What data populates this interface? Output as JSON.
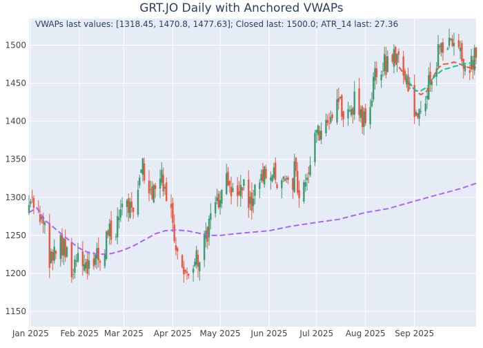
{
  "chart_data": {
    "type": "candlestick",
    "title": "GRT.JO Daily with Anchored VWAPs",
    "annotation": "VWAPs last values: [1318.45, 1470.8, 1477.63]; Closed last: 1500.0; ATR_14 last: 27.36",
    "xlabel": "",
    "ylabel": "",
    "x_range": [
      "2024-12-31",
      "2025-10-10"
    ],
    "ylim": [
      1130,
      1535
    ],
    "y_ticks": [
      1150,
      1200,
      1250,
      1300,
      1350,
      1400,
      1450,
      1500
    ],
    "x_ticks": [
      {
        "date": "2025-01-01",
        "label": "Jan 2025"
      },
      {
        "date": "2025-02-01",
        "label": "Feb 2025"
      },
      {
        "date": "2025-03-01",
        "label": "Mar 2025"
      },
      {
        "date": "2025-04-01",
        "label": "Apr 2025"
      },
      {
        "date": "2025-05-01",
        "label": "May 2025"
      },
      {
        "date": "2025-06-01",
        "label": "Jun 2025"
      },
      {
        "date": "2025-07-01",
        "label": "Jul 2025"
      },
      {
        "date": "2025-08-01",
        "label": "Aug 2025"
      },
      {
        "date": "2025-09-01",
        "label": "Sep 2025"
      }
    ],
    "grid": true,
    "legend": "none",
    "colors": {
      "plot_bg": "#e5ecf6",
      "grid": "#ffffff",
      "up": "#3d9970",
      "down": "#ef553b",
      "vwap_1": "#ab63fa",
      "vwap_2": "#ef553b",
      "vwap_3": "#00cc96",
      "text": "#444444",
      "title": "#2a3f5f"
    },
    "close_path": [
      [
        "2024-12-31",
        1280
      ],
      [
        "2025-01-03",
        1292
      ],
      [
        "2025-01-06",
        1275
      ],
      [
        "2025-01-09",
        1265
      ],
      [
        "2025-01-13",
        1215
      ],
      [
        "2025-01-16",
        1240
      ],
      [
        "2025-01-20",
        1245
      ],
      [
        "2025-01-23",
        1228
      ],
      [
        "2025-01-27",
        1210
      ],
      [
        "2025-01-30",
        1222
      ],
      [
        "2025-02-03",
        1215
      ],
      [
        "2025-02-06",
        1205
      ],
      [
        "2025-02-10",
        1220
      ],
      [
        "2025-02-13",
        1215
      ],
      [
        "2025-02-17",
        1240
      ],
      [
        "2025-02-20",
        1255
      ],
      [
        "2025-02-24",
        1245
      ],
      [
        "2025-02-27",
        1290
      ],
      [
        "2025-03-03",
        1295
      ],
      [
        "2025-03-06",
        1285
      ],
      [
        "2025-03-10",
        1300
      ],
      [
        "2025-03-13",
        1345
      ],
      [
        "2025-03-17",
        1318
      ],
      [
        "2025-03-20",
        1300
      ],
      [
        "2025-03-24",
        1330
      ],
      [
        "2025-03-27",
        1300
      ],
      [
        "2025-03-31",
        1290
      ],
      [
        "2025-04-03",
        1235
      ],
      [
        "2025-04-07",
        1195
      ],
      [
        "2025-04-10",
        1215
      ],
      [
        "2025-04-14",
        1210
      ],
      [
        "2025-04-17",
        1225
      ],
      [
        "2025-04-22",
        1245
      ],
      [
        "2025-04-25",
        1270
      ],
      [
        "2025-04-29",
        1295
      ],
      [
        "2025-05-02",
        1310
      ],
      [
        "2025-05-06",
        1325
      ],
      [
        "2025-05-09",
        1310
      ],
      [
        "2025-05-13",
        1300
      ],
      [
        "2025-05-16",
        1320
      ],
      [
        "2025-05-20",
        1290
      ],
      [
        "2025-05-23",
        1300
      ],
      [
        "2025-05-27",
        1325
      ],
      [
        "2025-05-30",
        1335
      ],
      [
        "2025-06-03",
        1345
      ],
      [
        "2025-06-06",
        1325
      ],
      [
        "2025-06-10",
        1340
      ],
      [
        "2025-06-13",
        1310
      ],
      [
        "2025-06-17",
        1330
      ],
      [
        "2025-06-20",
        1315
      ],
      [
        "2025-06-24",
        1330
      ],
      [
        "2025-06-27",
        1350
      ],
      [
        "2025-07-01",
        1380
      ],
      [
        "2025-07-04",
        1395
      ],
      [
        "2025-07-08",
        1400
      ],
      [
        "2025-07-11",
        1420
      ],
      [
        "2025-07-15",
        1430
      ],
      [
        "2025-07-18",
        1415
      ],
      [
        "2025-07-22",
        1410
      ],
      [
        "2025-07-25",
        1425
      ],
      [
        "2025-07-29",
        1405
      ],
      [
        "2025-08-01",
        1410
      ],
      [
        "2025-08-05",
        1430
      ],
      [
        "2025-08-08",
        1470
      ],
      [
        "2025-08-12",
        1480
      ],
      [
        "2025-08-15",
        1475
      ],
      [
        "2025-08-19",
        1485
      ],
      [
        "2025-08-22",
        1490
      ],
      [
        "2025-08-26",
        1460
      ],
      [
        "2025-08-29",
        1435
      ],
      [
        "2025-09-02",
        1400
      ],
      [
        "2025-09-05",
        1420
      ],
      [
        "2025-09-09",
        1440
      ],
      [
        "2025-09-12",
        1465
      ],
      [
        "2025-09-16",
        1485
      ],
      [
        "2025-09-19",
        1490
      ],
      [
        "2025-09-23",
        1500
      ],
      [
        "2025-09-26",
        1510
      ],
      [
        "2025-09-30",
        1495
      ],
      [
        "2025-10-03",
        1480
      ],
      [
        "2025-10-07",
        1475
      ],
      [
        "2025-10-10",
        1500
      ]
    ],
    "vwap_1": [
      [
        "2024-12-31",
        1280
      ],
      [
        "2025-01-05",
        1286
      ],
      [
        "2025-01-10",
        1270
      ],
      [
        "2025-01-17",
        1258
      ],
      [
        "2025-01-24",
        1246
      ],
      [
        "2025-01-31",
        1234
      ],
      [
        "2025-02-07",
        1227
      ],
      [
        "2025-02-14",
        1225
      ],
      [
        "2025-02-21",
        1226
      ],
      [
        "2025-02-28",
        1230
      ],
      [
        "2025-03-07",
        1236
      ],
      [
        "2025-03-14",
        1244
      ],
      [
        "2025-03-21",
        1252
      ],
      [
        "2025-03-27",
        1256
      ],
      [
        "2025-04-03",
        1257
      ],
      [
        "2025-04-10",
        1256
      ],
      [
        "2025-04-17",
        1253
      ],
      [
        "2025-04-24",
        1250
      ],
      [
        "2025-05-01",
        1250
      ],
      [
        "2025-05-15",
        1253
      ],
      [
        "2025-06-01",
        1256
      ],
      [
        "2025-06-15",
        1262
      ],
      [
        "2025-07-01",
        1267
      ],
      [
        "2025-07-15",
        1271
      ],
      [
        "2025-08-01",
        1280
      ],
      [
        "2025-08-15",
        1285
      ],
      [
        "2025-09-01",
        1295
      ],
      [
        "2025-09-15",
        1303
      ],
      [
        "2025-10-01",
        1312
      ],
      [
        "2025-10-10",
        1318.45
      ]
    ],
    "vwap_2": [
      [
        "2025-08-19",
        1480
      ],
      [
        "2025-08-22",
        1472
      ],
      [
        "2025-08-26",
        1460
      ],
      [
        "2025-08-29",
        1448
      ],
      [
        "2025-09-02",
        1440
      ],
      [
        "2025-09-05",
        1435
      ],
      [
        "2025-09-09",
        1440
      ],
      [
        "2025-09-12",
        1455
      ],
      [
        "2025-09-16",
        1470
      ],
      [
        "2025-09-19",
        1475
      ],
      [
        "2025-09-23",
        1476
      ],
      [
        "2025-09-26",
        1478
      ],
      [
        "2025-09-30",
        1475
      ],
      [
        "2025-10-03",
        1472
      ],
      [
        "2025-10-07",
        1470
      ],
      [
        "2025-10-10",
        1470.8
      ]
    ],
    "vwap_3": [
      [
        "2025-08-26",
        1462
      ],
      [
        "2025-08-29",
        1450
      ],
      [
        "2025-09-02",
        1440
      ],
      [
        "2025-09-05",
        1440
      ],
      [
        "2025-09-09",
        1445
      ],
      [
        "2025-09-12",
        1455
      ],
      [
        "2025-09-16",
        1463
      ],
      [
        "2025-09-19",
        1468
      ],
      [
        "2025-09-23",
        1470
      ],
      [
        "2025-09-26",
        1472
      ],
      [
        "2025-09-30",
        1474
      ],
      [
        "2025-10-03",
        1476
      ],
      [
        "2025-10-07",
        1477
      ],
      [
        "2025-10-10",
        1477.63
      ]
    ],
    "vwap_last_values": [
      1318.45,
      1470.8,
      1477.63
    ],
    "closed_last": 1500.0,
    "atr_14_last": 27.36
  }
}
